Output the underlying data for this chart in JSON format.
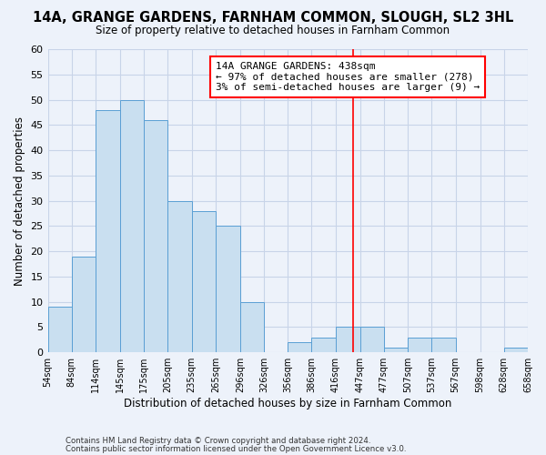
{
  "title": "14A, GRANGE GARDENS, FARNHAM COMMON, SLOUGH, SL2 3HL",
  "subtitle": "Size of property relative to detached houses in Farnham Common",
  "xlabel": "Distribution of detached houses by size in Farnham Common",
  "ylabel": "Number of detached properties",
  "bar_edges": [
    54,
    84,
    114,
    145,
    175,
    205,
    235,
    265,
    296,
    326,
    356,
    386,
    416,
    447,
    477,
    507,
    537,
    567,
    598,
    628,
    658
  ],
  "bar_heights": [
    9,
    19,
    48,
    50,
    46,
    30,
    28,
    25,
    10,
    0,
    2,
    3,
    5,
    5,
    1,
    3,
    3,
    0,
    0,
    1
  ],
  "bar_color": "#c9dff0",
  "bar_edge_color": "#5a9fd4",
  "property_line_x": 438,
  "ylim": [
    0,
    60
  ],
  "yticks": [
    0,
    5,
    10,
    15,
    20,
    25,
    30,
    35,
    40,
    45,
    50,
    55,
    60
  ],
  "annotation_title": "14A GRANGE GARDENS: 438sqm",
  "annotation_line1": "← 97% of detached houses are smaller (278)",
  "annotation_line2": "3% of semi-detached houses are larger (9) →",
  "footer_line1": "Contains HM Land Registry data © Crown copyright and database right 2024.",
  "footer_line2": "Contains public sector information licensed under the Open Government Licence v3.0.",
  "x_tick_labels": [
    "54sqm",
    "84sqm",
    "114sqm",
    "145sqm",
    "175sqm",
    "205sqm",
    "235sqm",
    "265sqm",
    "296sqm",
    "326sqm",
    "356sqm",
    "386sqm",
    "416sqm",
    "447sqm",
    "477sqm",
    "507sqm",
    "537sqm",
    "567sqm",
    "598sqm",
    "628sqm",
    "658sqm"
  ],
  "grid_color": "#c8d4e8",
  "background_color": "#edf2fa"
}
